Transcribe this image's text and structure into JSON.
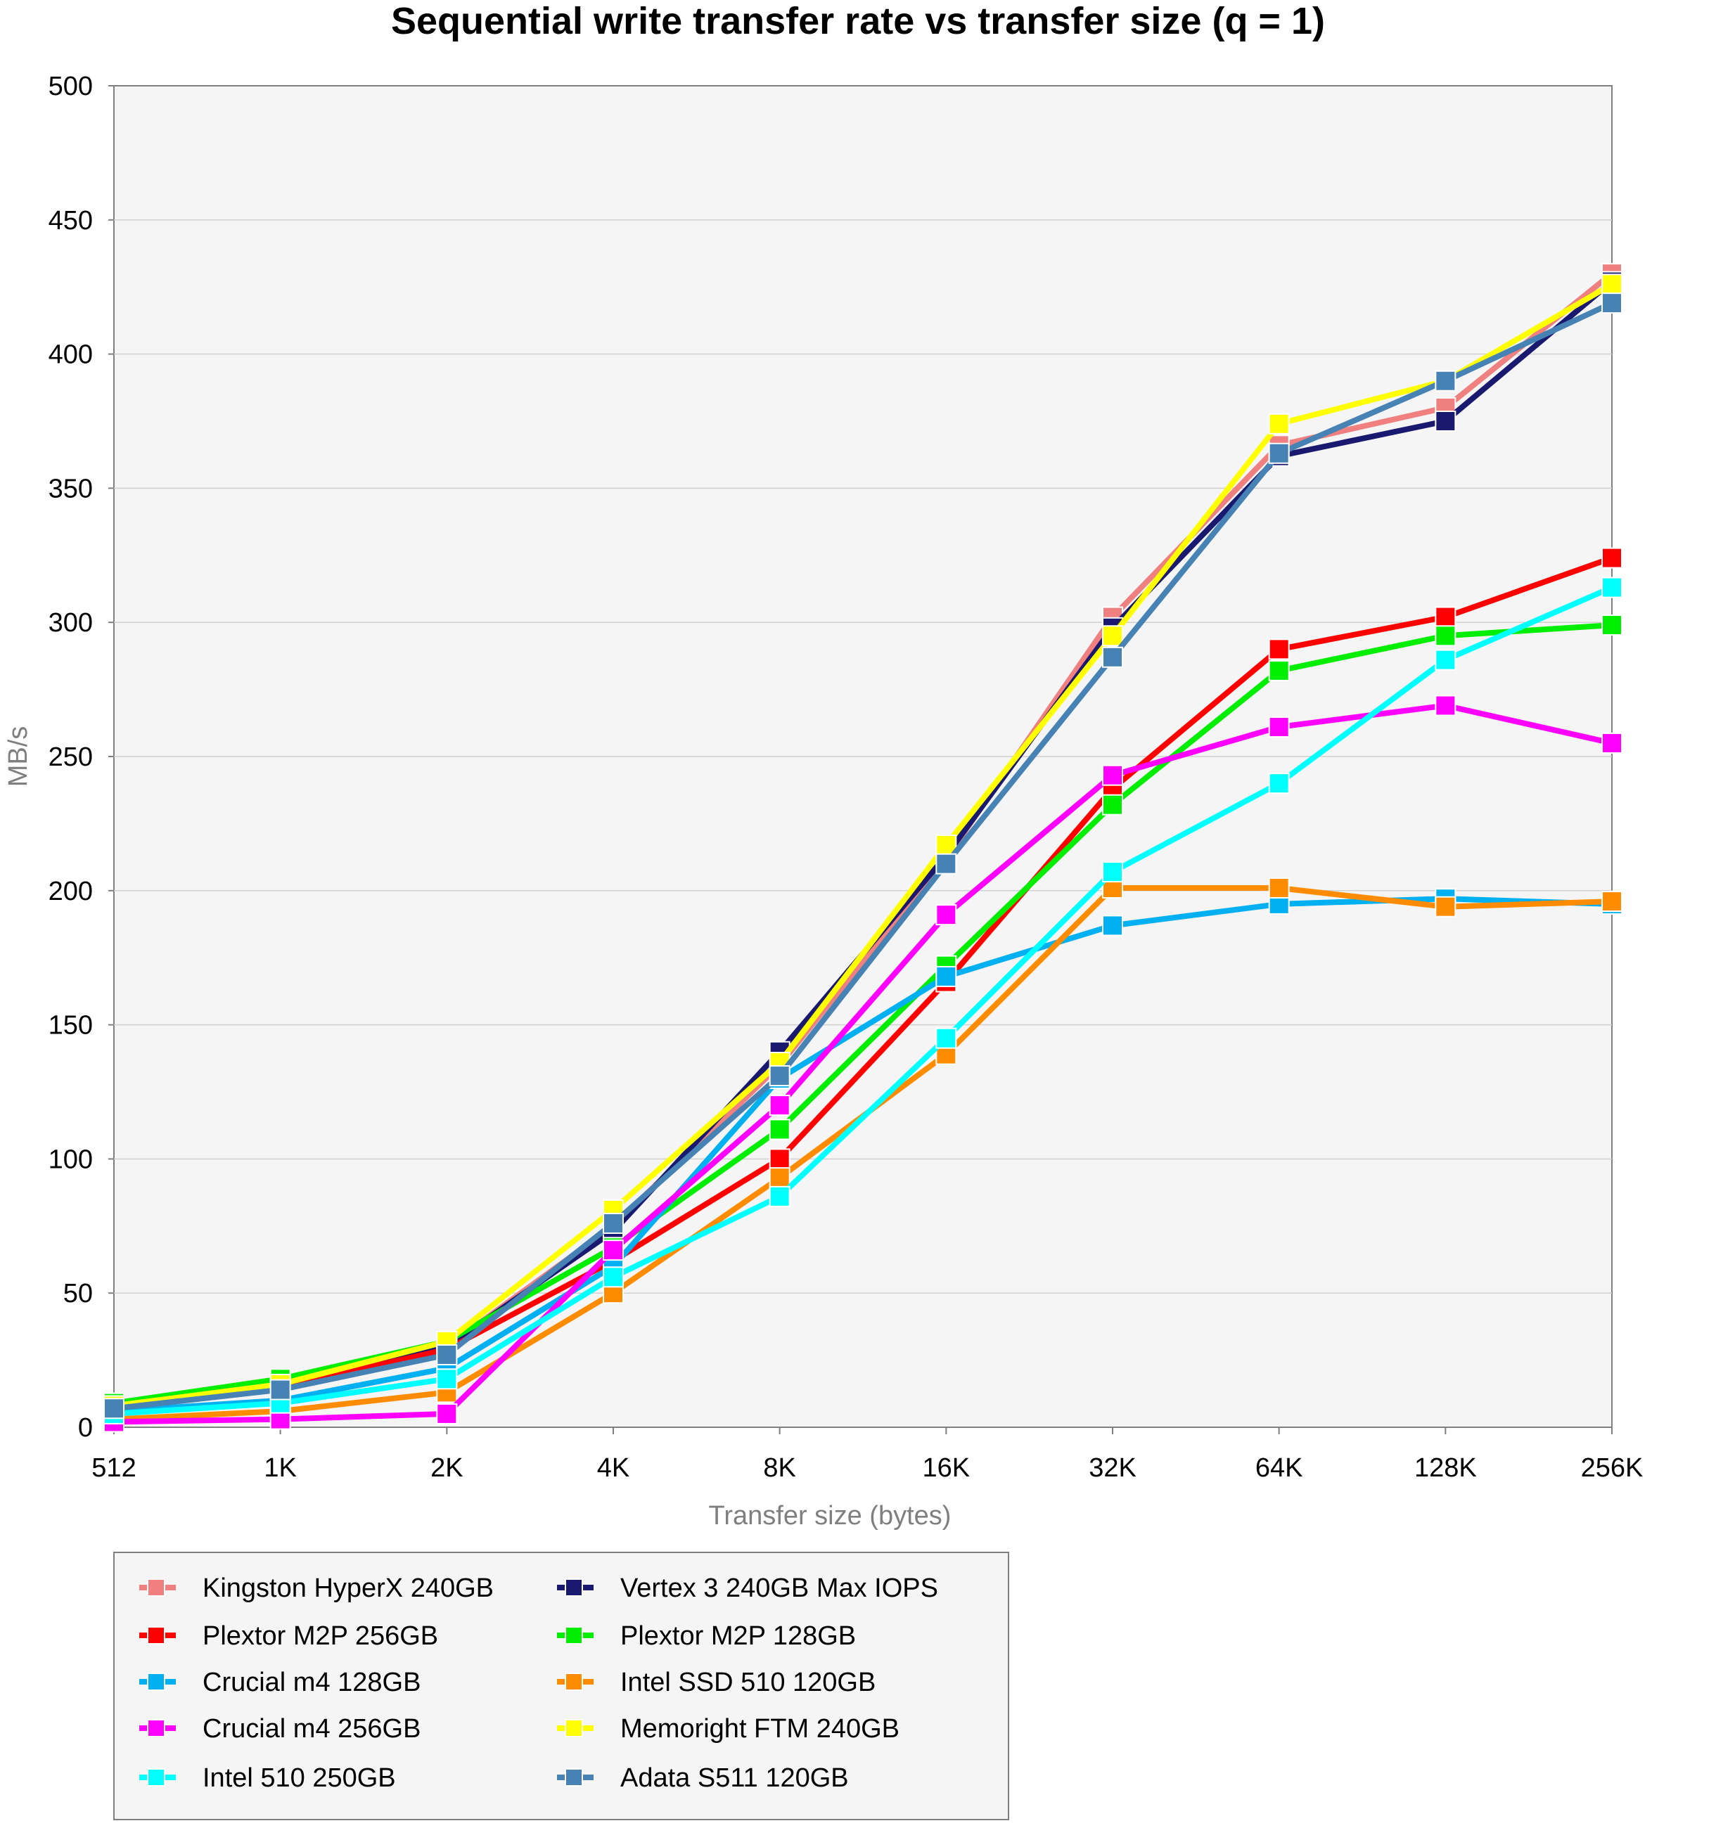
{
  "chart_data": {
    "type": "line",
    "title": "Sequential write transfer rate vs transfer size (q = 1)",
    "xlabel": "Transfer size (bytes)",
    "ylabel": "MB/s",
    "categories": [
      "512",
      "1K",
      "2K",
      "4K",
      "8K",
      "16K",
      "32K",
      "64K",
      "128K",
      "256K"
    ],
    "ylim": [
      0,
      500
    ],
    "yticks": [
      0,
      50,
      100,
      150,
      200,
      250,
      300,
      350,
      400,
      450,
      500
    ],
    "grid": true,
    "legend_position": "bottom-left",
    "series": [
      {
        "name": "Kingston HyperX 240GB",
        "color": "#f08080",
        "values": [
          8,
          16,
          30,
          75,
          135,
          212,
          302,
          366,
          380,
          430
        ]
      },
      {
        "name": "Vertex 3 240GB Max IOPS",
        "color": "#191970",
        "values": [
          8,
          16,
          30,
          73,
          140,
          213,
          298,
          362,
          375,
          427
        ]
      },
      {
        "name": "Plextor M2P 256GB",
        "color": "#ff0000",
        "values": [
          7,
          15,
          29,
          62,
          100,
          166,
          238,
          290,
          302,
          324
        ]
      },
      {
        "name": "Plextor M2P 128GB",
        "color": "#00ee00",
        "values": [
          9,
          18,
          32,
          67,
          111,
          172,
          232,
          282,
          295,
          299
        ]
      },
      {
        "name": "Crucial m4 128GB",
        "color": "#00b0f0",
        "values": [
          6,
          10,
          22,
          60,
          130,
          168,
          187,
          195,
          197,
          195
        ]
      },
      {
        "name": "Intel SSD 510 120GB",
        "color": "#ff8c00",
        "values": [
          3,
          6,
          13,
          50,
          93,
          139,
          201,
          201,
          194,
          196
        ]
      },
      {
        "name": "Crucial m4 256GB",
        "color": "#ff00ff",
        "values": [
          2,
          3,
          5,
          66,
          120,
          191,
          243,
          261,
          269,
          255
        ]
      },
      {
        "name": "Memoright FTM 240GB",
        "color": "#ffff00",
        "values": [
          8,
          16,
          32,
          81,
          136,
          217,
          295,
          374,
          390,
          426
        ]
      },
      {
        "name": "Intel 510 250GB",
        "color": "#00ffff",
        "values": [
          5,
          9,
          18,
          56,
          86,
          145,
          207,
          240,
          286,
          313
        ]
      },
      {
        "name": "Adata S511 120GB",
        "color": "#4682b4",
        "values": [
          7,
          14,
          27,
          76,
          131,
          210,
          287,
          363,
          390,
          419
        ]
      }
    ],
    "legend_columns": [
      [
        "Kingston HyperX 240GB",
        "Plextor M2P 256GB",
        "Crucial m4 128GB",
        "Crucial m4 256GB",
        "Intel 510 250GB"
      ],
      [
        "Vertex 3 240GB Max IOPS",
        "Plextor M2P 128GB",
        "Intel SSD 510 120GB",
        "Memoright FTM 240GB",
        "Adata S511 120GB"
      ]
    ]
  },
  "colors": {
    "plot_background": "#f5f5f5",
    "gridline": "#d0d0d0",
    "axis": "#7f7f7f"
  }
}
